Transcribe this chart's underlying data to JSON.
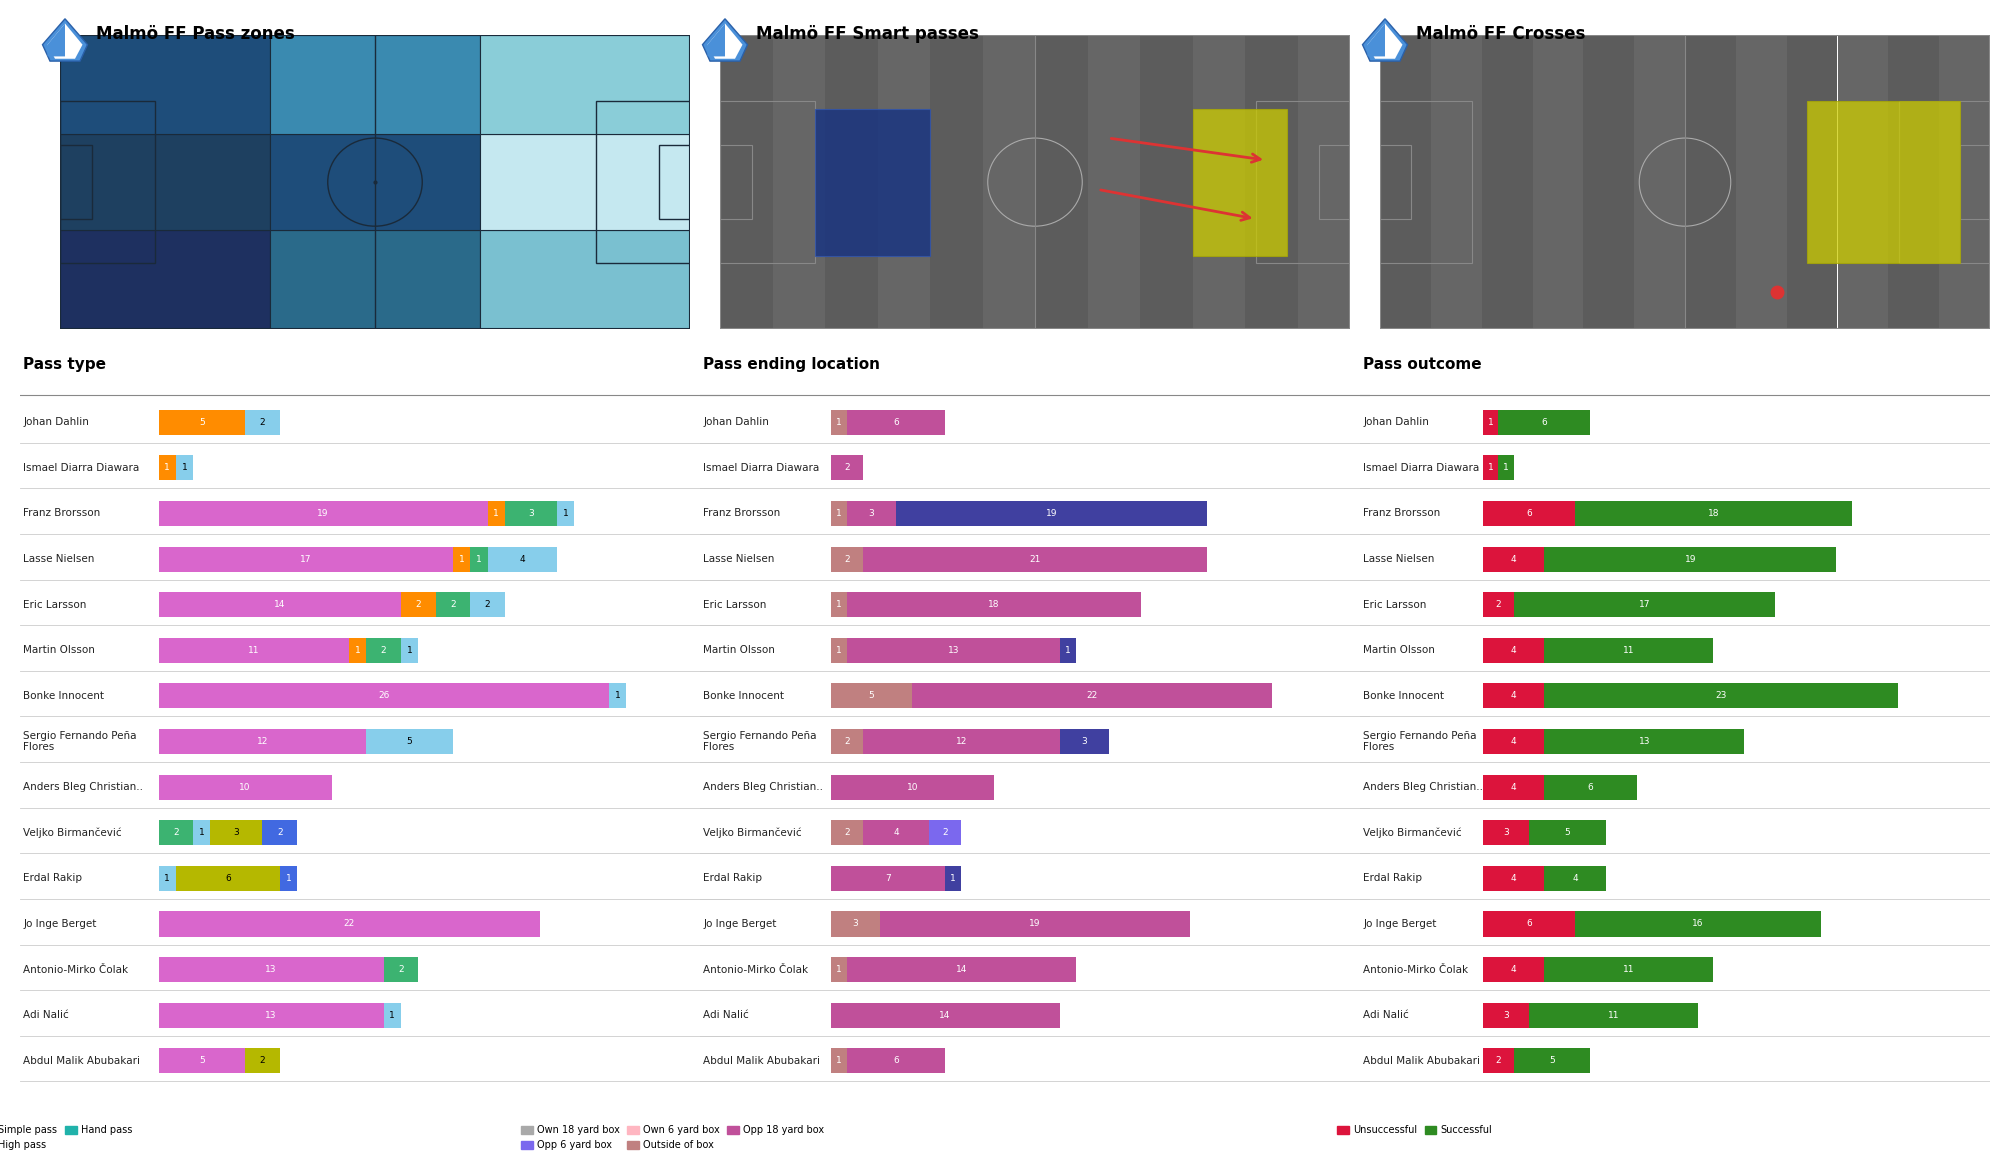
{
  "title1": "Malmö FF Pass zones",
  "title2": "Malmö FF Smart passes",
  "title3": "Malmö FF Crosses",
  "section1_title": "Pass type",
  "section2_title": "Pass ending location",
  "section3_title": "Pass outcome",
  "players": [
    "Johan Dahlin",
    "Ismael Diarra Diawara",
    "Franz Brorsson",
    "Lasse Nielsen",
    "Eric Larsson",
    "Martin Olsson",
    "Bonke Innocent",
    "Sergio Fernando Peña\nFlores",
    "Anders Bleg Christian..",
    "Veljko Birmančević",
    "Erdal Rakip",
    "Jo Inge Berget",
    "Antonio-Mirko Čolak",
    "Adi Nalić",
    "Abdul Malik Abubakari"
  ],
  "pass_type": {
    "smart_pass": [
      0,
      0,
      0,
      0,
      0,
      0,
      0,
      0,
      0,
      2,
      1,
      0,
      0,
      0,
      0
    ],
    "simple_pass": [
      0,
      0,
      19,
      17,
      14,
      11,
      26,
      12,
      10,
      0,
      0,
      22,
      13,
      13,
      5
    ],
    "launch": [
      5,
      1,
      1,
      1,
      2,
      1,
      0,
      0,
      0,
      0,
      0,
      0,
      0,
      0,
      0
    ],
    "high_pass": [
      0,
      0,
      0,
      0,
      0,
      0,
      0,
      0,
      0,
      3,
      6,
      0,
      0,
      0,
      2
    ],
    "head_pass": [
      0,
      0,
      3,
      1,
      2,
      2,
      0,
      0,
      0,
      2,
      0,
      0,
      2,
      0,
      0
    ],
    "hand_pass": [
      0,
      0,
      0,
      0,
      0,
      0,
      0,
      0,
      0,
      0,
      0,
      0,
      0,
      0,
      0
    ],
    "cross": [
      2,
      1,
      1,
      4,
      2,
      1,
      1,
      5,
      0,
      1,
      1,
      0,
      0,
      1,
      0
    ]
  },
  "pass_ending": {
    "own18": [
      0,
      0,
      0,
      0,
      0,
      0,
      0,
      0,
      0,
      0,
      0,
      0,
      0,
      0,
      0
    ],
    "own6": [
      0,
      0,
      0,
      0,
      0,
      0,
      0,
      0,
      0,
      0,
      0,
      0,
      0,
      0,
      0
    ],
    "outside": [
      1,
      0,
      1,
      2,
      1,
      1,
      5,
      2,
      0,
      2,
      0,
      3,
      1,
      0,
      1
    ],
    "opp18": [
      6,
      2,
      3,
      21,
      18,
      13,
      22,
      12,
      10,
      4,
      7,
      19,
      14,
      14,
      6
    ],
    "opp6": [
      0,
      0,
      0,
      0,
      0,
      0,
      0,
      0,
      0,
      2,
      0,
      0,
      0,
      0,
      0
    ],
    "opp6box": [
      0,
      0,
      19,
      0,
      0,
      1,
      0,
      3,
      0,
      0,
      1,
      0,
      0,
      0,
      0
    ]
  },
  "pass_outcome": {
    "unsuccessful": [
      1,
      1,
      6,
      4,
      2,
      4,
      4,
      4,
      4,
      3,
      4,
      6,
      4,
      3,
      2
    ],
    "successful": [
      6,
      1,
      18,
      19,
      17,
      11,
      23,
      13,
      6,
      5,
      4,
      16,
      11,
      11,
      5
    ]
  },
  "colors": {
    "smart_pass": "#4169e1",
    "simple_pass": "#d966cc",
    "launch": "#ff8c00",
    "high_pass": "#b5b800",
    "head_pass": "#3cb371",
    "hand_pass": "#20b2aa",
    "cross": "#87ceeb",
    "own18": "#a9a9a9",
    "own6": "#ffb6c1",
    "outside": "#c08080",
    "opp18": "#c0509a",
    "opp6": "#7b68ee",
    "opp6box": "#4040a0",
    "unsuccessful": "#dc143c",
    "successful": "#2e8b22"
  },
  "pitch1_zones": [
    [
      "#1e4d7a",
      "#3a8ab0",
      "#8acdd8"
    ],
    [
      "#1e4060",
      "#1e4d7a",
      "#c5e8f0"
    ],
    [
      "#1e3060",
      "#2a6a8a",
      "#7ac0d0"
    ]
  ],
  "bg_color": "#ffffff"
}
